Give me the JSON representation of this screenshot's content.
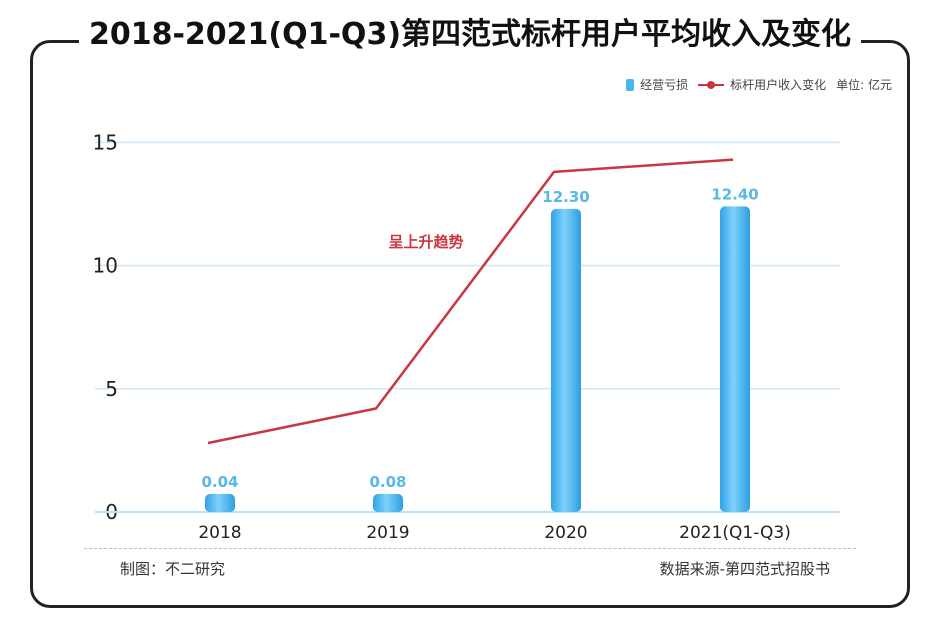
{
  "title": "2018-2021(Q1-Q3)第四范式标杆用户平均收入及变化",
  "legend": {
    "bar_label": "经营亏损",
    "line_label": "标杆用户收入变化",
    "unit_label": "单位: 亿元"
  },
  "annotation": "呈上升趋势",
  "footer": {
    "left": "制图：不二研究",
    "right": "数据来源-第四范式招股书"
  },
  "colors": {
    "bar": "#47b6f2",
    "line": "#c93641",
    "grid": "#cfe8f6",
    "bar_label": "#5ab8e6",
    "annotation": "#c93641"
  },
  "chart_data": {
    "type": "bar",
    "categories": [
      "2018",
      "2019",
      "2020",
      "2021(Q1-Q3)"
    ],
    "series": [
      {
        "name": "经营亏损",
        "type": "bar",
        "values": [
          0.04,
          0.08,
          12.3,
          12.4
        ],
        "labels": [
          "0.04",
          "0.08",
          "12.30",
          "12.40"
        ]
      },
      {
        "name": "标杆用户收入变化",
        "type": "line",
        "values": [
          2.8,
          4.2,
          13.8,
          14.3
        ]
      }
    ],
    "yticks": [
      0,
      5,
      10,
      15
    ],
    "ylim": [
      0,
      15.5
    ],
    "grid": true,
    "legend_position": "top-right"
  }
}
